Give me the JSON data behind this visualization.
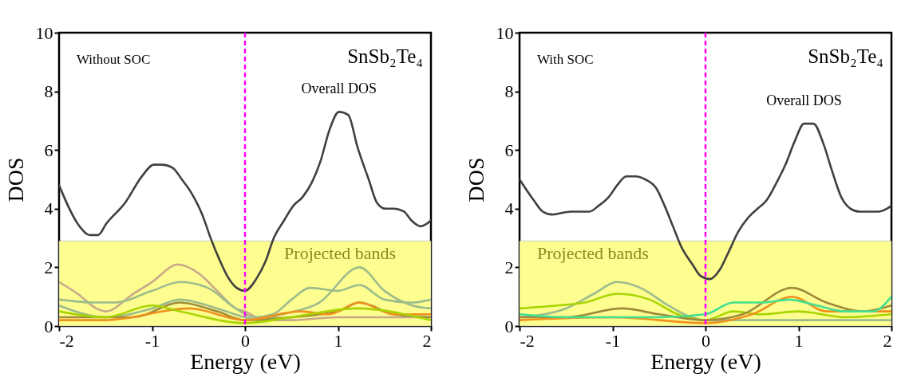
{
  "chart_data": [
    {
      "type": "line",
      "xlabel": "Energy (eV)",
      "ylabel": "DOS",
      "xlim": [
        -2,
        2
      ],
      "ylim": [
        0,
        10
      ],
      "xticks": [
        -2,
        -1,
        0,
        1,
        2
      ],
      "yticks": [
        0,
        2,
        4,
        6,
        8,
        10
      ],
      "grid": false,
      "annotations": [
        "Without SOC",
        "SnSb₂Te₄"
      ],
      "ref_lines": [
        {
          "axis": "x",
          "value": 0,
          "color": "#ff00ff",
          "line_style": "dashed"
        }
      ],
      "bands": [
        {
          "axis": "y",
          "from": 0,
          "to": 2.9,
          "label": "Projected bands",
          "color": "#fdfd90"
        }
      ],
      "series": [
        {
          "name": "Overall DOS",
          "color": "#404040",
          "x": [
            -2,
            -1.78,
            -1.67,
            -1.58,
            -1.49,
            -1.29,
            -1.11,
            -0.98,
            -0.89,
            -0.78,
            -0.68,
            -0.57,
            -0.46,
            -0.37,
            -0.28,
            -0.19,
            -0.09,
            0,
            0.12,
            0.22,
            0.31,
            0.42,
            0.52,
            0.62,
            0.72,
            0.81,
            0.91,
            1.01,
            1.11,
            1.21,
            1.33,
            1.42,
            1.51,
            1.6,
            1.71,
            1.79,
            1.89,
            2
          ],
          "values": [
            4.8,
            3.4,
            3.1,
            3.1,
            3.5,
            4.2,
            5.1,
            5.5,
            5.5,
            5.4,
            5.0,
            4.5,
            3.8,
            3.0,
            2.3,
            1.7,
            1.3,
            1.2,
            1.6,
            2.2,
            3.0,
            3.6,
            4.1,
            4.4,
            4.9,
            5.6,
            6.7,
            7.3,
            7.2,
            6.1,
            5.0,
            4.2,
            4.0,
            4.0,
            3.9,
            3.6,
            3.4,
            3.6
          ]
        },
        {
          "color": "#c8a88a",
          "x": [
            -2,
            -1.8,
            -1.6,
            -1.5,
            -1.2,
            -1,
            -0.72,
            -0.5,
            -0.3,
            -0.1,
            0,
            0.2,
            0.5,
            1,
            1.5,
            2
          ],
          "values": [
            1.5,
            1.1,
            0.6,
            0.5,
            1.1,
            1.5,
            2.1,
            1.8,
            1.2,
            0.6,
            0.5,
            0.2,
            0.2,
            0.3,
            0.3,
            0.3
          ]
        },
        {
          "color": "#9cbc8c",
          "x": [
            -2,
            -1.6,
            -1.4,
            -1,
            -0.7,
            -0.4,
            -0.1,
            0.1,
            0.3,
            0.5,
            0.7,
            1,
            1.23,
            1.5,
            1.8,
            2
          ],
          "values": [
            0.9,
            0.8,
            0.8,
            1.2,
            1.5,
            1.3,
            0.6,
            0.3,
            0.4,
            0.9,
            1.3,
            1.2,
            1.4,
            0.9,
            0.8,
            0.9
          ]
        },
        {
          "color": "#9cbc8c",
          "x": [
            -2,
            -1.5,
            -1,
            -0.7,
            -0.3,
            0,
            0.15,
            0.4,
            0.8,
            1.23,
            1.5,
            1.8,
            2
          ],
          "values": [
            0.7,
            0.3,
            0.6,
            0.9,
            0.6,
            0.3,
            0.2,
            0.4,
            0.8,
            2.0,
            1.2,
            0.7,
            0.6
          ]
        },
        {
          "color": "#a08a3c",
          "x": [
            -2,
            -1.2,
            -0.7,
            -0.3,
            0,
            0.5,
            1,
            1.23,
            1.6,
            2
          ],
          "values": [
            0.3,
            0.3,
            0.8,
            0.5,
            0.2,
            0.3,
            0.5,
            0.8,
            0.4,
            0.3
          ]
        },
        {
          "color": "#f0901c",
          "x": [
            -2,
            -1.5,
            -0.6,
            0,
            0.6,
            0.9,
            1.23,
            1.6,
            2
          ],
          "values": [
            0.2,
            0.2,
            0.6,
            0.2,
            0.5,
            0.4,
            0.8,
            0.4,
            0.4
          ]
        },
        {
          "color": "#a8d400",
          "x": [
            -2,
            -1.5,
            -1,
            -0.7,
            0,
            0.5,
            1.2,
            2
          ],
          "values": [
            0.5,
            0.3,
            0.7,
            0.5,
            0.1,
            0.3,
            0.6,
            0.2
          ]
        }
      ]
    },
    {
      "type": "line",
      "xlabel": "Energy (eV)",
      "ylabel": "DOS",
      "xlim": [
        -2,
        2
      ],
      "ylim": [
        0,
        10
      ],
      "xticks": [
        -2,
        -1,
        0,
        1,
        2
      ],
      "yticks": [
        0,
        2,
        4,
        6,
        8,
        10
      ],
      "grid": false,
      "annotations": [
        "With SOC",
        "SnSb₂Te₄"
      ],
      "ref_lines": [
        {
          "axis": "x",
          "value": 0,
          "color": "#ff00ff",
          "line_style": "dashed"
        }
      ],
      "bands": [
        {
          "axis": "y",
          "from": 0,
          "to": 2.9,
          "label": "Projected bands",
          "color": "#fdfd90"
        }
      ],
      "series": [
        {
          "name": "Overall DOS",
          "color": "#404040",
          "x": [
            -2,
            -1.85,
            -1.75,
            -1.65,
            -1.45,
            -1.25,
            -1.15,
            -1.04,
            -0.95,
            -0.85,
            -0.75,
            -0.65,
            -0.53,
            -0.44,
            -0.35,
            -0.26,
            -0.14,
            -0.05,
            0.05,
            0.15,
            0.26,
            0.35,
            0.46,
            0.56,
            0.66,
            0.75,
            0.86,
            0.96,
            1.06,
            1.16,
            1.27,
            1.36,
            1.46,
            1.56,
            1.66,
            1.86,
            1.95,
            2
          ],
          "values": [
            5.0,
            4.3,
            3.9,
            3.8,
            3.9,
            3.9,
            4.1,
            4.4,
            4.8,
            5.1,
            5.1,
            5.0,
            4.7,
            4.1,
            3.4,
            2.7,
            2.1,
            1.7,
            1.6,
            1.9,
            2.6,
            3.2,
            3.7,
            4.0,
            4.3,
            4.8,
            5.5,
            6.3,
            6.9,
            6.9,
            6.2,
            5.3,
            4.4,
            4.0,
            3.9,
            3.9,
            4.0,
            4.1
          ]
        },
        {
          "color": "#9cbc8c",
          "x": [
            -2,
            -1.5,
            -1.2,
            -0.95,
            -0.7,
            -0.4,
            -0.15,
            0,
            0.5,
            1,
            1.5,
            2
          ],
          "values": [
            0.3,
            0.6,
            1.1,
            1.5,
            1.3,
            0.7,
            0.3,
            0.2,
            0.2,
            0.2,
            0.2,
            0.2
          ]
        },
        {
          "color": "#a8d400",
          "x": [
            -2,
            -1.6,
            -1.3,
            -0.95,
            -0.6,
            -0.3,
            0,
            0.3,
            0.6,
            1,
            1.5,
            2
          ],
          "values": [
            0.6,
            0.7,
            0.8,
            1.1,
            0.9,
            0.4,
            0.2,
            0.5,
            0.4,
            0.5,
            0.3,
            0.4
          ]
        },
        {
          "color": "#a08a3c",
          "x": [
            -2,
            -1.5,
            -0.9,
            -0.5,
            0,
            0.4,
            0.93,
            1.3,
            1.7,
            2
          ],
          "values": [
            0.3,
            0.3,
            0.6,
            0.4,
            0.2,
            0.4,
            1.3,
            0.8,
            0.5,
            0.7
          ]
        },
        {
          "color": "#f0901c",
          "x": [
            -2,
            -1,
            0,
            0.5,
            0.93,
            1.3,
            2
          ],
          "values": [
            0.2,
            0.3,
            0.1,
            0.4,
            1.0,
            0.5,
            0.5
          ]
        },
        {
          "color": "#40e090",
          "x": [
            -2,
            -1.5,
            -0.5,
            0,
            0.3,
            0.6,
            0.9,
            1.2,
            1.5,
            1.8,
            2
          ],
          "values": [
            0.4,
            0.3,
            0.3,
            0.4,
            0.8,
            0.8,
            0.9,
            0.7,
            0.5,
            0.5,
            1.0
          ]
        }
      ]
    }
  ]
}
